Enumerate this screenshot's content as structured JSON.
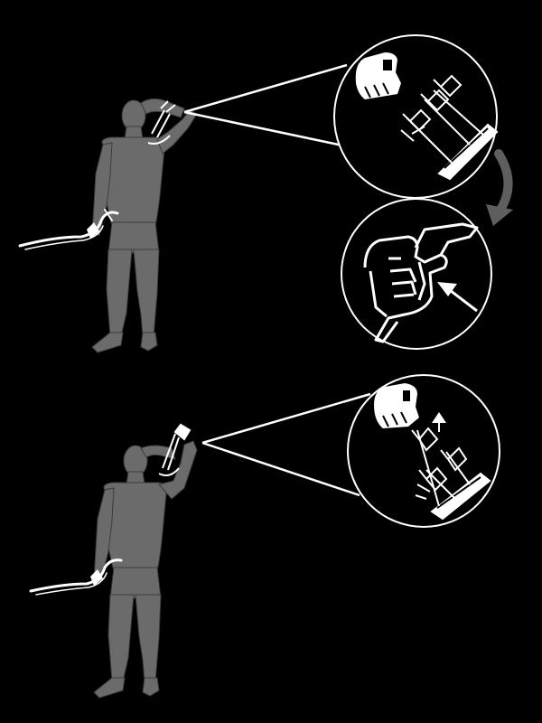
{
  "colors": {
    "background": "#000000",
    "figure": "#6b6b6b",
    "figure_outline": "#3c3c3c",
    "line": "#ffffff",
    "bow": "#ffffff",
    "curved_arrow": "#5e5e5e"
  },
  "icons": {
    "archer_top": "archer-reaching-quiver",
    "archer_bottom": "archer-drawing-arrow",
    "zoom_top": "hand-at-quiver-icon",
    "zoom_middle": "hand-gripping-tab-icon",
    "zoom_bottom": "hand-pulling-arrow-icon"
  },
  "panels": [
    {
      "id": "step-1",
      "detail": "hand-at-quiver"
    },
    {
      "id": "step-2",
      "detail": "hand-gripping-tab"
    },
    {
      "id": "step-3",
      "detail": "hand-pulling-arrow"
    }
  ]
}
